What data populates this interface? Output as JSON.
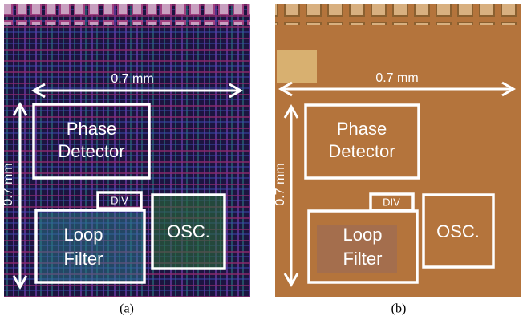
{
  "panels": [
    {
      "caption": "(a)",
      "width_label": "0.7 mm",
      "height_label": "0.7 mm",
      "blocks": {
        "phase_detector": [
          "Phase",
          "Detector"
        ],
        "div": "DIV",
        "loop_filter": [
          "Loop",
          "Filter"
        ],
        "osc": "OSC."
      }
    },
    {
      "caption": "(b)",
      "width_label": "0.7 mm",
      "height_label": "0.7 mm",
      "blocks": {
        "phase_detector": [
          "Phase",
          "Detector"
        ],
        "div": "DIV",
        "loop_filter": [
          "Loop",
          "Filter"
        ],
        "osc": "OSC."
      }
    }
  ]
}
